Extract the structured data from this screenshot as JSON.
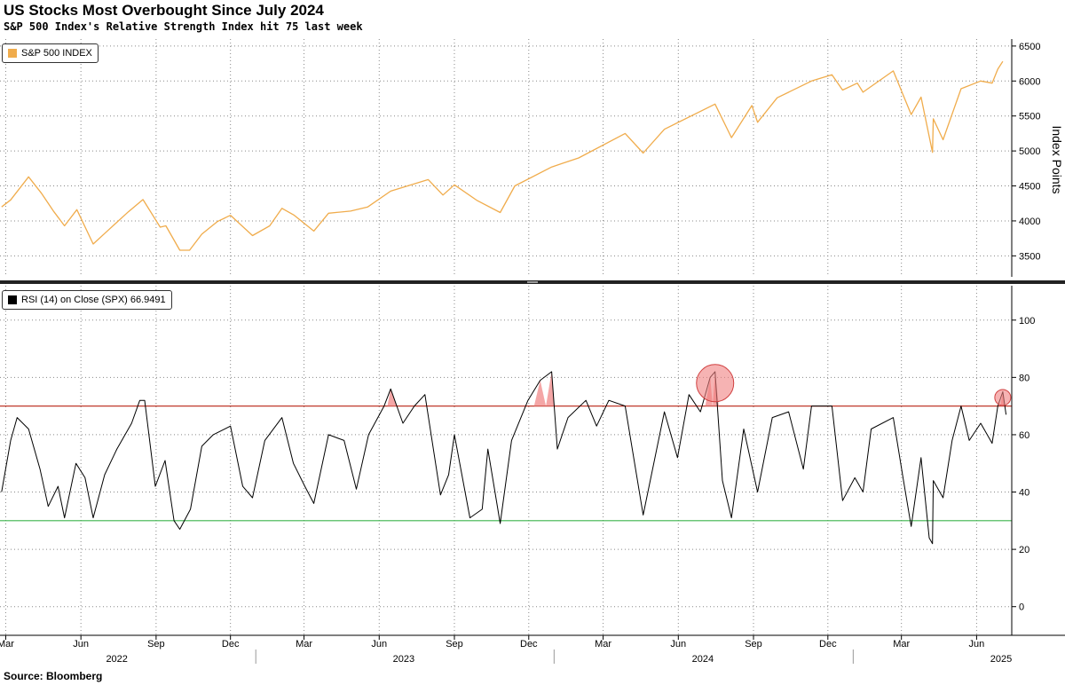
{
  "header": {
    "title": "US Stocks Most Overbought Since July 2024",
    "subtitle": "S&P 500 Index's Relative Strength Index hit 75 last week"
  },
  "footer": {
    "source": "Source: Bloomberg"
  },
  "colors": {
    "spx": "#f0ac4c",
    "rsi": "#000000",
    "overbought_line": "#c0392b",
    "oversold_line": "#3cb44b",
    "highlight": "#f08080"
  },
  "chart_data": [
    {
      "type": "line",
      "title": "",
      "legend": "S&P 500 INDEX",
      "legend_position": "top-left",
      "ylabel": "Index Points",
      "ylim": [
        3200,
        6600
      ],
      "yticks": [
        3500,
        4000,
        4500,
        5000,
        5500,
        6000,
        6500
      ],
      "grid": true,
      "series": [
        {
          "name": "S&P 500 INDEX",
          "points": [
            [
              "2022-02-24",
              4200
            ],
            [
              "2022-03-07",
              4300
            ],
            [
              "2022-03-29",
              4630
            ],
            [
              "2022-04-14",
              4390
            ],
            [
              "2022-04-29",
              4130
            ],
            [
              "2022-05-12",
              3930
            ],
            [
              "2022-05-27",
              4160
            ],
            [
              "2022-06-16",
              3670
            ],
            [
              "2022-07-01",
              3830
            ],
            [
              "2022-07-29",
              4130
            ],
            [
              "2022-08-16",
              4305
            ],
            [
              "2022-09-06",
              3910
            ],
            [
              "2022-09-13",
              3930
            ],
            [
              "2022-09-30",
              3580
            ],
            [
              "2022-10-12",
              3580
            ],
            [
              "2022-10-27",
              3810
            ],
            [
              "2022-11-15",
              3990
            ],
            [
              "2022-12-01",
              4080
            ],
            [
              "2022-12-28",
              3790
            ],
            [
              "2023-01-18",
              3930
            ],
            [
              "2023-02-02",
              4180
            ],
            [
              "2023-02-17",
              4080
            ],
            [
              "2023-03-13",
              3855
            ],
            [
              "2023-03-31",
              4110
            ],
            [
              "2023-04-27",
              4140
            ],
            [
              "2023-05-18",
              4200
            ],
            [
              "2023-06-15",
              4425
            ],
            [
              "2023-07-31",
              4590
            ],
            [
              "2023-08-18",
              4370
            ],
            [
              "2023-09-01",
              4515
            ],
            [
              "2023-09-29",
              4290
            ],
            [
              "2023-10-27",
              4120
            ],
            [
              "2023-11-14",
              4500
            ],
            [
              "2023-12-29",
              4770
            ],
            [
              "2024-01-31",
              4900
            ],
            [
              "2024-03-28",
              5250
            ],
            [
              "2024-04-19",
              4970
            ],
            [
              "2024-05-15",
              5310
            ],
            [
              "2024-07-16",
              5670
            ],
            [
              "2024-08-05",
              5190
            ],
            [
              "2024-08-30",
              5650
            ],
            [
              "2024-09-06",
              5410
            ],
            [
              "2024-09-30",
              5760
            ],
            [
              "2024-11-11",
              6000
            ],
            [
              "2024-12-06",
              6090
            ],
            [
              "2024-12-19",
              5870
            ],
            [
              "2025-01-06",
              5970
            ],
            [
              "2025-01-13",
              5840
            ],
            [
              "2025-02-19",
              6145
            ],
            [
              "2025-03-13",
              5520
            ],
            [
              "2025-03-25",
              5770
            ],
            [
              "2025-04-08",
              4980
            ],
            [
              "2025-04-09",
              5460
            ],
            [
              "2025-04-21",
              5160
            ],
            [
              "2025-05-13",
              5890
            ],
            [
              "2025-06-06",
              6000
            ],
            [
              "2025-06-20",
              5970
            ],
            [
              "2025-06-27",
              6170
            ],
            [
              "2025-07-03",
              6280
            ]
          ]
        }
      ]
    },
    {
      "type": "line",
      "title": "",
      "legend": "RSI (14)  on Close (SPX) 66.9491",
      "legend_position": "top-left",
      "ylim": [
        -10,
        112
      ],
      "yticks": [
        0,
        20,
        40,
        60,
        80,
        100
      ],
      "grid": true,
      "reference_lines": [
        {
          "value": 70,
          "color": "#c0392b"
        },
        {
          "value": 30,
          "color": "#3cb44b"
        }
      ],
      "highlights": [
        {
          "x": "2024-07-16",
          "y": 78,
          "size": "large"
        },
        {
          "x": "2025-07-03",
          "y": 73,
          "size": "small"
        }
      ],
      "series": [
        {
          "name": "RSI (14)",
          "points": [
            [
              "2022-02-24",
              40
            ],
            [
              "2022-03-07",
              58
            ],
            [
              "2022-03-15",
              66
            ],
            [
              "2022-03-29",
              62
            ],
            [
              "2022-04-12",
              48
            ],
            [
              "2022-04-22",
              35
            ],
            [
              "2022-05-04",
              42
            ],
            [
              "2022-05-12",
              31
            ],
            [
              "2022-05-26",
              50
            ],
            [
              "2022-06-06",
              45
            ],
            [
              "2022-06-16",
              31
            ],
            [
              "2022-06-30",
              46
            ],
            [
              "2022-07-15",
              55
            ],
            [
              "2022-08-02",
              64
            ],
            [
              "2022-08-12",
              72
            ],
            [
              "2022-08-18",
              72
            ],
            [
              "2022-08-31",
              42
            ],
            [
              "2022-09-12",
              51
            ],
            [
              "2022-09-23",
              30
            ],
            [
              "2022-09-30",
              27
            ],
            [
              "2022-10-13",
              34
            ],
            [
              "2022-10-27",
              56
            ],
            [
              "2022-11-10",
              60
            ],
            [
              "2022-12-01",
              63
            ],
            [
              "2022-12-16",
              42
            ],
            [
              "2022-12-28",
              38
            ],
            [
              "2023-01-12",
              58
            ],
            [
              "2023-02-02",
              66
            ],
            [
              "2023-02-16",
              50
            ],
            [
              "2023-03-02",
              42
            ],
            [
              "2023-03-13",
              36
            ],
            [
              "2023-03-31",
              60
            ],
            [
              "2023-04-19",
              58
            ],
            [
              "2023-05-04",
              41
            ],
            [
              "2023-05-19",
              60
            ],
            [
              "2023-06-07",
              70
            ],
            [
              "2023-06-15",
              76
            ],
            [
              "2023-06-30",
              64
            ],
            [
              "2023-07-14",
              70
            ],
            [
              "2023-07-27",
              74
            ],
            [
              "2023-08-15",
              39
            ],
            [
              "2023-08-25",
              46
            ],
            [
              "2023-09-01",
              60
            ],
            [
              "2023-09-20",
              31
            ],
            [
              "2023-10-05",
              34
            ],
            [
              "2023-10-12",
              55
            ],
            [
              "2023-10-27",
              29
            ],
            [
              "2023-11-10",
              58
            ],
            [
              "2023-11-30",
              72
            ],
            [
              "2023-12-15",
              79
            ],
            [
              "2023-12-29",
              82
            ],
            [
              "2024-01-05",
              55
            ],
            [
              "2024-01-18",
              66
            ],
            [
              "2024-02-09",
              72
            ],
            [
              "2024-02-22",
              63
            ],
            [
              "2024-03-08",
              72
            ],
            [
              "2024-03-28",
              70
            ],
            [
              "2024-04-19",
              32
            ],
            [
              "2024-05-15",
              68
            ],
            [
              "2024-05-31",
              52
            ],
            [
              "2024-06-14",
              74
            ],
            [
              "2024-06-28",
              68
            ],
            [
              "2024-07-10",
              80
            ],
            [
              "2024-07-16",
              82
            ],
            [
              "2024-07-25",
              44
            ],
            [
              "2024-08-05",
              31
            ],
            [
              "2024-08-20",
              62
            ],
            [
              "2024-09-06",
              40
            ],
            [
              "2024-09-24",
              66
            ],
            [
              "2024-10-14",
              68
            ],
            [
              "2024-11-01",
              48
            ],
            [
              "2024-11-11",
              70
            ],
            [
              "2024-12-06",
              70
            ],
            [
              "2024-12-19",
              37
            ],
            [
              "2025-01-03",
              45
            ],
            [
              "2025-01-13",
              40
            ],
            [
              "2025-01-23",
              62
            ],
            [
              "2025-02-19",
              66
            ],
            [
              "2025-03-03",
              45
            ],
            [
              "2025-03-13",
              28
            ],
            [
              "2025-03-25",
              52
            ],
            [
              "2025-04-04",
              24
            ],
            [
              "2025-04-08",
              22
            ],
            [
              "2025-04-09",
              44
            ],
            [
              "2025-04-21",
              38
            ],
            [
              "2025-05-02",
              58
            ],
            [
              "2025-05-13",
              70
            ],
            [
              "2025-05-23",
              58
            ],
            [
              "2025-06-06",
              64
            ],
            [
              "2025-06-20",
              57
            ],
            [
              "2025-06-27",
              70
            ],
            [
              "2025-07-03",
              75
            ],
            [
              "2025-07-07",
              67
            ]
          ]
        }
      ]
    }
  ],
  "x_axis": {
    "range": [
      "2022-02-22",
      "2025-07-14"
    ],
    "month_ticks": [
      {
        "date": "2022-03-01",
        "label": "Mar"
      },
      {
        "date": "2022-06-01",
        "label": "Jun"
      },
      {
        "date": "2022-09-01",
        "label": "Sep"
      },
      {
        "date": "2022-12-01",
        "label": "Dec"
      },
      {
        "date": "2023-03-01",
        "label": "Mar"
      },
      {
        "date": "2023-06-01",
        "label": "Jun"
      },
      {
        "date": "2023-09-01",
        "label": "Sep"
      },
      {
        "date": "2023-12-01",
        "label": "Dec"
      },
      {
        "date": "2024-03-01",
        "label": "Mar"
      },
      {
        "date": "2024-06-01",
        "label": "Jun"
      },
      {
        "date": "2024-09-01",
        "label": "Sep"
      },
      {
        "date": "2024-12-01",
        "label": "Dec"
      },
      {
        "date": "2025-03-01",
        "label": "Mar"
      },
      {
        "date": "2025-06-01",
        "label": "Jun"
      }
    ],
    "year_labels": [
      {
        "date": "2022-07-15",
        "label": "2022"
      },
      {
        "date": "2023-07-01",
        "label": "2023"
      },
      {
        "date": "2024-07-01",
        "label": "2024"
      },
      {
        "date": "2025-07-01",
        "label": "2025"
      }
    ],
    "year_dividers": [
      "2023-01-01",
      "2024-01-01",
      "2025-01-01"
    ]
  }
}
